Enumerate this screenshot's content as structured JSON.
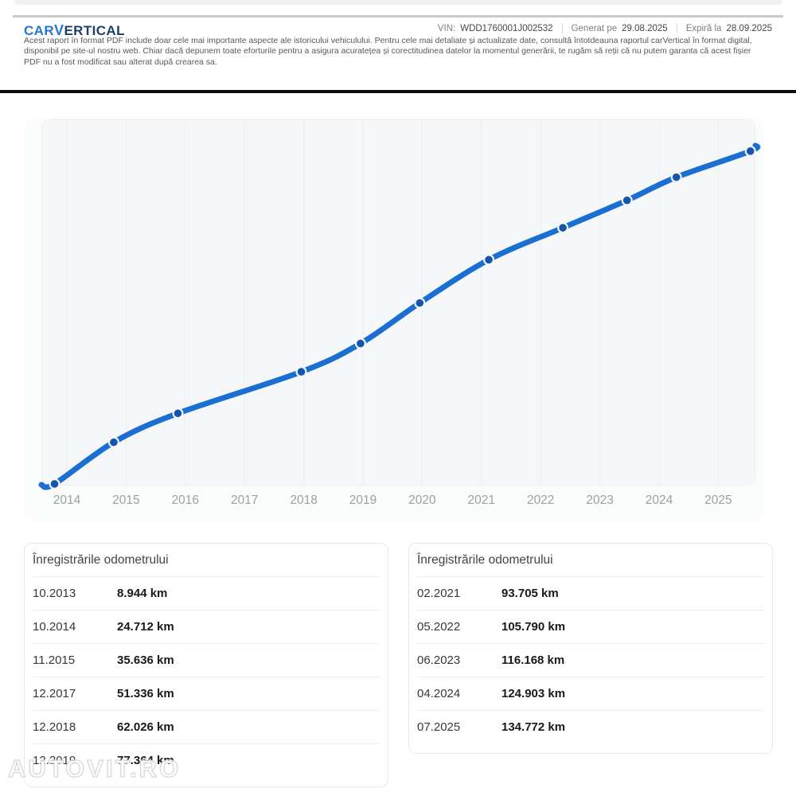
{
  "header": {
    "logo_car": "CAR",
    "logo_v": "V",
    "logo_rest": "ERTICAL",
    "vin_label": "VIN:",
    "vin": "WDD1760001J002532",
    "generated_label": "Generat pe",
    "generated_date": "29.08.2025",
    "expires_label": "Expiră la",
    "expires_date": "28.09.2025",
    "disclaimer_lines": [
      "Acest raport în format PDF include doar cele mai importante aspecte ale istoricului vehiculului. Pentru cele mai detaliate și actualizate date, consultă întotdeauna raportul carVertical în format digital,",
      "disponibil pe site-ul nostru web. Chiar dacă depunem toate eforturile pentru a asigura acuratețea și corectitudinea datelor la momentul generării, te rugăm să reții că nu putem garanta că acest fișier",
      "PDF nu a fost modificat sau alterat după crearea sa."
    ]
  },
  "colors": {
    "brand_blue": "#2577d0",
    "brand_navy": "#1f4066",
    "line_blue": "#1c6fd2",
    "dot_blue": "#1456ad"
  },
  "chart_data": {
    "type": "line",
    "title": "",
    "x_tick_labels": [
      "2014",
      "2015",
      "2016",
      "2017",
      "2018",
      "2019",
      "2020",
      "2021",
      "2022",
      "2023",
      "2024",
      "2025"
    ],
    "points": [
      {
        "date": "10.2013",
        "km": 8944
      },
      {
        "date": "10.2014",
        "km": 24712
      },
      {
        "date": "11.2015",
        "km": 35636
      },
      {
        "date": "12.2017",
        "km": 51336
      },
      {
        "date": "12.2018",
        "km": 62026
      },
      {
        "date": "12.2019",
        "km": 77364
      },
      {
        "date": "02.2021",
        "km": 93705
      },
      {
        "date": "05.2022",
        "km": 105790
      },
      {
        "date": "06.2023",
        "km": 116168
      },
      {
        "date": "04.2024",
        "km": 124903
      },
      {
        "date": "07.2025",
        "km": 134772
      }
    ],
    "line_color": "#1c6fd2",
    "dot_color": "#1456ad",
    "grid": "vertical",
    "legend": "none"
  },
  "tables": [
    {
      "title": "Înregistrările odometrului",
      "rows": [
        {
          "date": "10.2013",
          "value": "8.944 km"
        },
        {
          "date": "10.2014",
          "value": "24.712 km"
        },
        {
          "date": "11.2015",
          "value": "35.636 km"
        },
        {
          "date": "12.2017",
          "value": "51.336 km"
        },
        {
          "date": "12.2018",
          "value": "62.026 km"
        },
        {
          "date": "12.2019",
          "value": "77.364 km"
        }
      ]
    },
    {
      "title": "Înregistrările odometrului",
      "rows": [
        {
          "date": "02.2021",
          "value": "93.705 km"
        },
        {
          "date": "05.2022",
          "value": "105.790 km"
        },
        {
          "date": "06.2023",
          "value": "116.168 km"
        },
        {
          "date": "04.2024",
          "value": "124.903 km"
        },
        {
          "date": "07.2025",
          "value": "134.772 km"
        }
      ]
    }
  ],
  "watermark": {
    "text": "AUTOVIT.RO"
  }
}
